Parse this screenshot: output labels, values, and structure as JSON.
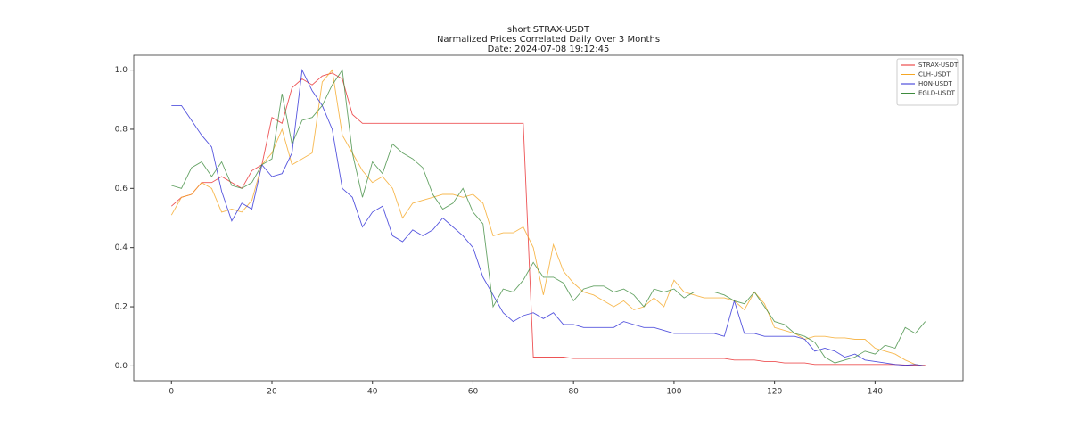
{
  "chart_data": {
    "type": "line",
    "title_lines": [
      "short STRAX-USDT",
      "Narmalized Prices Correlated Daily Over 3 Months",
      "Date: 2024-07-08 19:12:45"
    ],
    "x": [
      0,
      2,
      4,
      6,
      8,
      10,
      12,
      14,
      16,
      18,
      20,
      22,
      24,
      26,
      28,
      30,
      32,
      34,
      36,
      38,
      40,
      42,
      44,
      46,
      48,
      50,
      52,
      54,
      56,
      58,
      60,
      62,
      64,
      66,
      68,
      70,
      72,
      74,
      76,
      78,
      80,
      82,
      84,
      86,
      88,
      90,
      92,
      94,
      96,
      98,
      100,
      102,
      104,
      106,
      108,
      110,
      112,
      114,
      116,
      118,
      120,
      122,
      124,
      126,
      128,
      130,
      132,
      134,
      136,
      138,
      140,
      142,
      144,
      146,
      148,
      150
    ],
    "series": [
      {
        "name": "STRAX-USDT",
        "color": "#e8282a",
        "values": [
          0.54,
          0.57,
          0.58,
          0.62,
          0.62,
          0.64,
          0.62,
          0.6,
          0.66,
          0.68,
          0.84,
          0.82,
          0.94,
          0.97,
          0.95,
          0.98,
          0.99,
          0.97,
          0.85,
          0.82,
          0.82,
          0.82,
          0.82,
          0.82,
          0.82,
          0.82,
          0.82,
          0.82,
          0.82,
          0.82,
          0.82,
          0.82,
          0.82,
          0.82,
          0.82,
          0.82,
          0.03,
          0.03,
          0.03,
          0.03,
          0.025,
          0.025,
          0.025,
          0.025,
          0.025,
          0.025,
          0.025,
          0.025,
          0.025,
          0.025,
          0.025,
          0.025,
          0.025,
          0.025,
          0.025,
          0.025,
          0.02,
          0.02,
          0.02,
          0.015,
          0.015,
          0.01,
          0.01,
          0.01,
          0.005,
          0.005,
          0.005,
          0.005,
          0.005,
          0.005,
          0.005,
          0.005,
          0.005,
          0.003,
          0.002,
          0.002
        ]
      },
      {
        "name": "CLH-USDT",
        "color": "#f5a623",
        "values": [
          0.51,
          0.57,
          0.58,
          0.62,
          0.6,
          0.52,
          0.53,
          0.52,
          0.56,
          0.68,
          0.72,
          0.8,
          0.68,
          0.7,
          0.72,
          0.96,
          1.0,
          0.78,
          0.72,
          0.66,
          0.62,
          0.64,
          0.6,
          0.5,
          0.55,
          0.56,
          0.57,
          0.58,
          0.58,
          0.57,
          0.58,
          0.55,
          0.44,
          0.45,
          0.45,
          0.47,
          0.4,
          0.24,
          0.41,
          0.32,
          0.28,
          0.25,
          0.24,
          0.22,
          0.2,
          0.22,
          0.19,
          0.2,
          0.23,
          0.2,
          0.29,
          0.25,
          0.24,
          0.23,
          0.23,
          0.23,
          0.22,
          0.19,
          0.25,
          0.21,
          0.13,
          0.12,
          0.11,
          0.09,
          0.1,
          0.1,
          0.095,
          0.095,
          0.09,
          0.09,
          0.06,
          0.05,
          0.04,
          0.02,
          0.005,
          0.0
        ]
      },
      {
        "name": "HON-USDT",
        "color": "#2b2bd6",
        "values": [
          0.88,
          0.88,
          0.83,
          0.78,
          0.74,
          0.59,
          0.49,
          0.55,
          0.53,
          0.68,
          0.64,
          0.65,
          0.72,
          1.0,
          0.93,
          0.88,
          0.8,
          0.6,
          0.57,
          0.47,
          0.52,
          0.54,
          0.44,
          0.42,
          0.46,
          0.44,
          0.46,
          0.5,
          0.47,
          0.44,
          0.4,
          0.3,
          0.24,
          0.18,
          0.15,
          0.17,
          0.18,
          0.16,
          0.18,
          0.14,
          0.14,
          0.13,
          0.13,
          0.13,
          0.13,
          0.15,
          0.14,
          0.13,
          0.13,
          0.12,
          0.11,
          0.11,
          0.11,
          0.11,
          0.11,
          0.1,
          0.22,
          0.11,
          0.11,
          0.1,
          0.1,
          0.1,
          0.1,
          0.09,
          0.05,
          0.06,
          0.05,
          0.03,
          0.04,
          0.02,
          0.015,
          0.01,
          0.005,
          0.002,
          0.005,
          0.0
        ]
      },
      {
        "name": "EGLD-USDT",
        "color": "#3d8b3d",
        "values": [
          0.61,
          0.6,
          0.67,
          0.69,
          0.64,
          0.69,
          0.61,
          0.6,
          0.62,
          0.68,
          0.7,
          0.92,
          0.75,
          0.83,
          0.84,
          0.88,
          0.95,
          1.0,
          0.72,
          0.57,
          0.69,
          0.65,
          0.75,
          0.72,
          0.7,
          0.67,
          0.58,
          0.53,
          0.55,
          0.6,
          0.52,
          0.48,
          0.2,
          0.26,
          0.25,
          0.29,
          0.35,
          0.3,
          0.3,
          0.28,
          0.22,
          0.26,
          0.27,
          0.27,
          0.25,
          0.26,
          0.24,
          0.2,
          0.26,
          0.25,
          0.26,
          0.23,
          0.25,
          0.25,
          0.25,
          0.24,
          0.22,
          0.21,
          0.25,
          0.2,
          0.15,
          0.14,
          0.11,
          0.1,
          0.08,
          0.03,
          0.01,
          0.02,
          0.03,
          0.05,
          0.04,
          0.07,
          0.06,
          0.13,
          0.11,
          0.15
        ]
      }
    ],
    "xlim": [
      -7.5,
      157.5
    ],
    "xticks": [
      0,
      20,
      40,
      60,
      80,
      100,
      120,
      140
    ],
    "ylim": [
      -0.05,
      1.05
    ],
    "yticks": [
      {
        "value": 0,
        "label": "0.0"
      },
      0.2,
      0.4,
      0.6,
      0.8,
      {
        "value": 1,
        "label": "1.0"
      }
    ],
    "legend": "upper right"
  }
}
